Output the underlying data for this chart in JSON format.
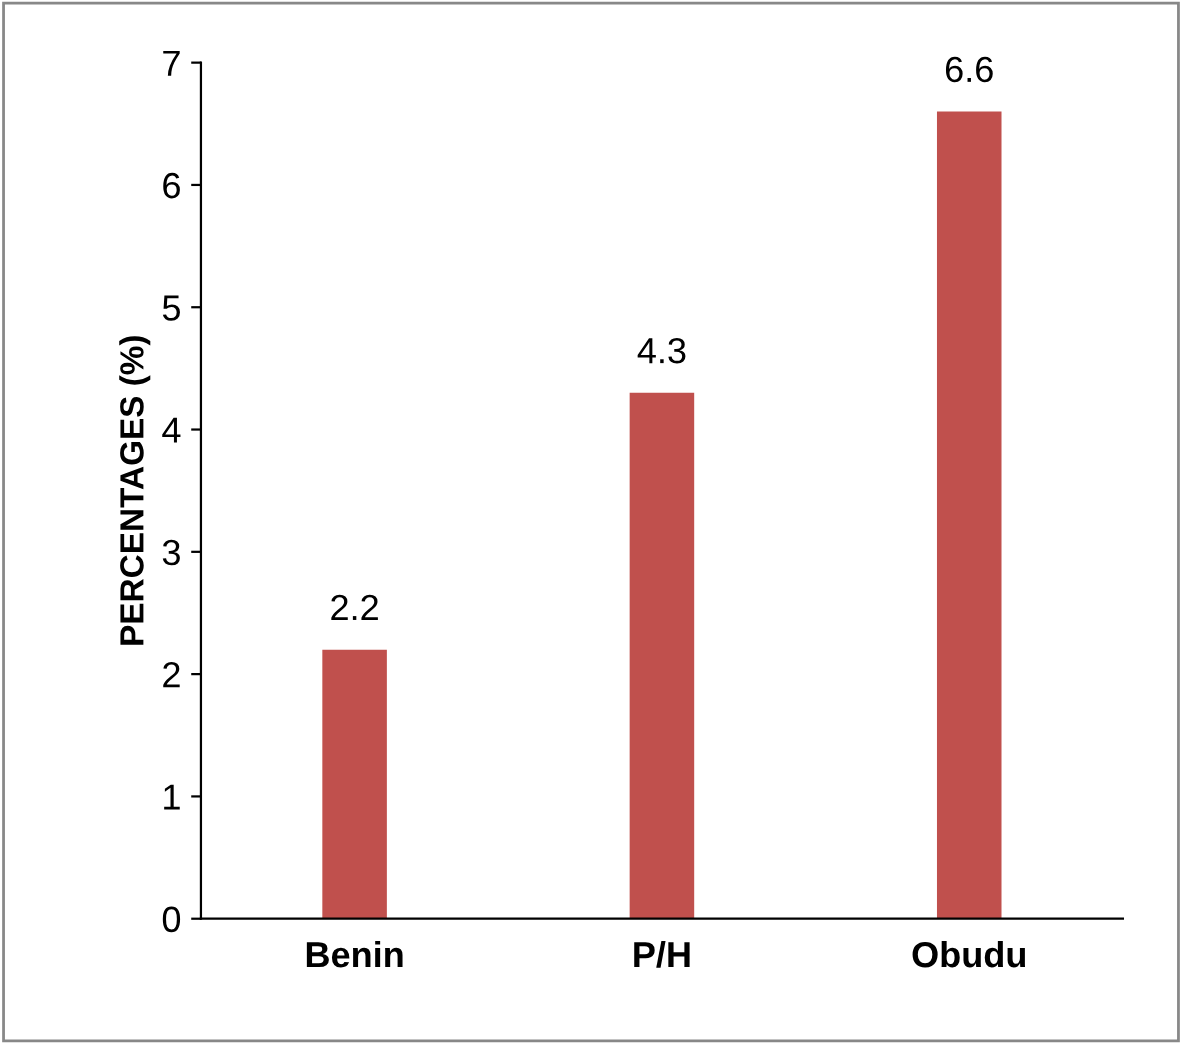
{
  "chart_data": {
    "type": "bar",
    "ylabel": "PERCENTAGES (%)",
    "categories": [
      "Benin",
      "P/H",
      "Obudu"
    ],
    "values": [
      2.2,
      4.3,
      6.6
    ],
    "color": "#c0504d",
    "ylim": [
      0,
      7
    ],
    "yticks": [
      0,
      1,
      2,
      3,
      4,
      5,
      6,
      7
    ],
    "data_labels": true,
    "grid": false,
    "legend": false
  }
}
